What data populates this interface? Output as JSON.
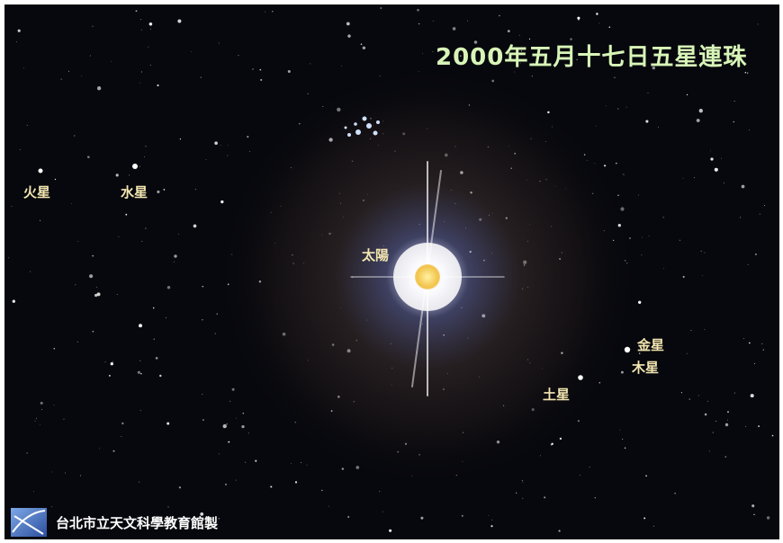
{
  "title": "2000年五月十七日五星連珠",
  "bodies": [
    {
      "label": "火星"
    },
    {
      "label": "水星"
    },
    {
      "label": "太陽"
    },
    {
      "label": "金星"
    },
    {
      "label": "木星"
    },
    {
      "label": "土星"
    }
  ],
  "credit": "台北市立天文科學教育館製"
}
